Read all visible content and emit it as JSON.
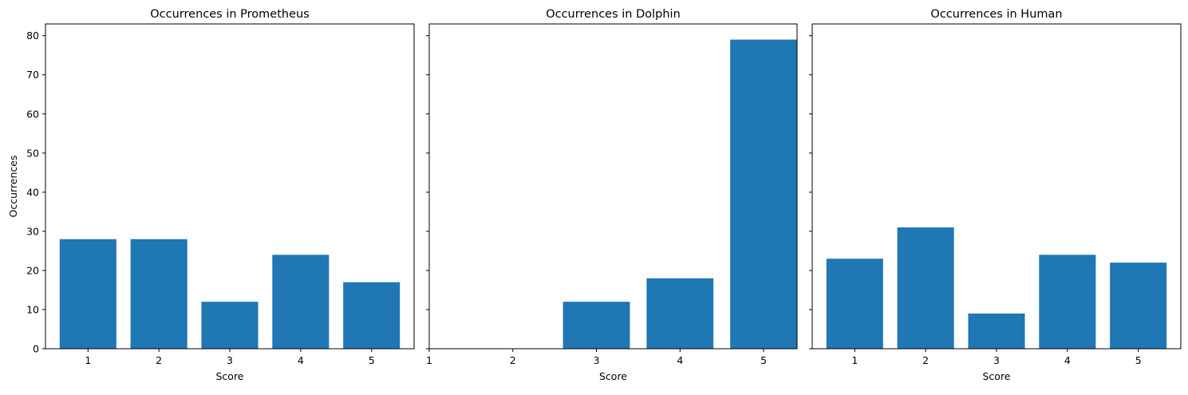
{
  "chart_data": [
    {
      "type": "bar",
      "title": "Occurrences in Prometheus",
      "xlabel": "Score",
      "ylabel": "Occurrences",
      "categories": [
        "1",
        "2",
        "3",
        "4",
        "5"
      ],
      "x": [
        1,
        2,
        3,
        4,
        5
      ],
      "values": [
        28,
        28,
        12,
        24,
        17
      ],
      "ylim": [
        0,
        83
      ],
      "yticks": [
        0,
        10,
        20,
        30,
        40,
        50,
        60,
        70,
        80
      ],
      "xlim": [
        0.4,
        5.6
      ],
      "xticks": [
        1,
        2,
        3,
        4,
        5
      ],
      "color": "#1f77b4",
      "grid": false,
      "show_ytick_labels": true
    },
    {
      "type": "bar",
      "title": "Occurrences in Dolphin",
      "xlabel": "Score",
      "ylabel": "",
      "categories": [
        "1",
        "2",
        "3",
        "4",
        "5"
      ],
      "x": [
        3,
        4,
        5
      ],
      "values": [
        12,
        18,
        79
      ],
      "ylim": [
        0,
        83
      ],
      "yticks": [
        0,
        10,
        20,
        30,
        40,
        50,
        60,
        70,
        80
      ],
      "xlim": [
        1,
        5.4
      ],
      "xticks": [
        1,
        2,
        3,
        4,
        5
      ],
      "color": "#1f77b4",
      "grid": false,
      "show_ytick_labels": false
    },
    {
      "type": "bar",
      "title": "Occurrences in Human",
      "xlabel": "Score",
      "ylabel": "",
      "categories": [
        "1",
        "2",
        "3",
        "4",
        "5"
      ],
      "x": [
        1,
        2,
        3,
        4,
        5
      ],
      "values": [
        23,
        31,
        9,
        24,
        22
      ],
      "ylim": [
        0,
        83
      ],
      "yticks": [
        0,
        10,
        20,
        30,
        40,
        50,
        60,
        70,
        80
      ],
      "xlim": [
        0.4,
        5.6
      ],
      "xticks": [
        1,
        2,
        3,
        4,
        5
      ],
      "color": "#1f77b4",
      "grid": false,
      "show_ytick_labels": false
    }
  ]
}
